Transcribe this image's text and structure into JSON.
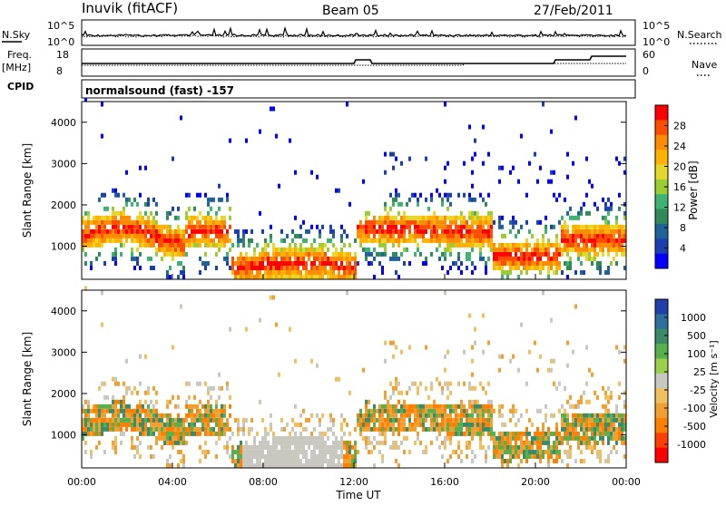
{
  "header": {
    "station": "Inuvik (fitACF)",
    "beam": "Beam 05",
    "date": "27/Feb/2011"
  },
  "strips": {
    "nsky_label": "N.Sky",
    "nsky_ticks_left": [
      "10^5",
      "10^0"
    ],
    "nsky_ticks_right": [
      "10^5",
      "10^0"
    ],
    "nsearch_label": "N.Search",
    "freq_label": "Freq.",
    "freq_unit": "[MHz]",
    "freq_ticks": [
      "18",
      "8"
    ],
    "nave_ticks": [
      "60",
      "0"
    ],
    "nave_label": "Nave",
    "cpid_label": "CPID",
    "cpid_text": "normalsound (fast) -157"
  },
  "chart_data": [
    {
      "type": "heatmap",
      "name": "power",
      "ylabel": "Slant Range [km]",
      "yticks": [
        "1000",
        "2000",
        "3000",
        "4000"
      ],
      "ylim": [
        200,
        4500
      ],
      "xlim": [
        0,
        24
      ],
      "colorbar_label": "Power [dB]",
      "colorbar_ticks": [
        "28",
        "24",
        "20",
        "16",
        "12",
        "8",
        "4"
      ],
      "colorbar_colors": [
        "#ff0000",
        "#ff4d00",
        "#ff8c00",
        "#ffb300",
        "#e6d82a",
        "#9acd32",
        "#3cb371",
        "#2e8b57",
        "#20639b",
        "#1a3fb0",
        "#0000ff"
      ]
    },
    {
      "type": "heatmap",
      "name": "velocity",
      "ylabel": "Slant Range [km]",
      "yticks": [
        "1000",
        "2000",
        "3000",
        "4000"
      ],
      "ylim": [
        200,
        4500
      ],
      "xlim": [
        0,
        24
      ],
      "xticks": [
        "00:00",
        "04:00",
        "08:00",
        "12:00",
        "16:00",
        "20:00",
        "00:00"
      ],
      "xlabel": "Time UT",
      "colorbar_label": "Velocity [m s⁻¹]",
      "colorbar_ticks": [
        "1000",
        "500",
        "100",
        "25",
        "-25",
        "-100",
        "-500",
        "-1000"
      ],
      "colorbar_colors": [
        "#1f3faa",
        "#2f6fa0",
        "#3b8a68",
        "#58b04c",
        "#9ad04a",
        "#c8c8c0",
        "#f0c060",
        "#f0a030",
        "#ff8000",
        "#ff4000",
        "#ff0000"
      ]
    }
  ]
}
